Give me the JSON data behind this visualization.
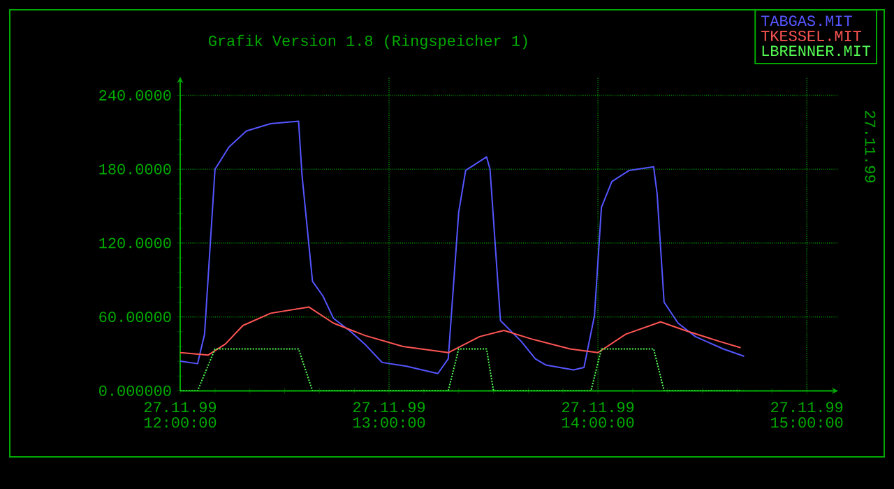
{
  "chart_data": {
    "type": "line",
    "title": "Grafik   Version 1.8 (Ringspeicher 1)",
    "xlim": [
      "1999-11-27T12:00",
      "1999-11-27T15:09"
    ],
    "ylim": [
      0,
      255
    ],
    "xticks": [
      {
        "value": "1999-11-27T12:00",
        "label": "27.11.99 12:00:00"
      },
      {
        "value": "1999-11-27T13:00",
        "label": "27.11.99 13:00:00"
      },
      {
        "value": "1999-11-27T14:00",
        "label": "27.11.99 14:00:00"
      },
      {
        "value": "1999-11-27T15:00",
        "label": "27.11.99 15:00:00"
      }
    ],
    "yticks": [
      {
        "value": 0,
        "label": "0.000000"
      },
      {
        "value": 60,
        "label": "60.00000"
      },
      {
        "value": 120,
        "label": "120.0000"
      },
      {
        "value": 180,
        "label": "180.0000"
      },
      {
        "value": 240,
        "label": "240.0000"
      }
    ],
    "grid": true,
    "legend": "top right",
    "marker": "none",
    "annotations": [
      "27.11.99"
    ],
    "series": [
      {
        "name": "TABGAS.MIT",
        "color": "#5555ff",
        "line_style": "solid",
        "x": [
          "1999-11-27T12:00",
          "1999-11-27T12:05",
          "1999-11-27T12:07",
          "1999-11-27T12:10",
          "1999-11-27T12:14",
          "1999-11-27T12:19",
          "1999-11-27T12:26",
          "1999-11-27T12:34",
          "1999-11-27T12:35",
          "1999-11-27T12:38",
          "1999-11-27T12:41",
          "1999-11-27T12:44",
          "1999-11-27T12:49",
          "1999-11-27T12:53",
          "1999-11-27T12:58",
          "1999-11-27T13:05",
          "1999-11-27T13:14",
          "1999-11-27T13:17",
          "1999-11-27T13:20",
          "1999-11-27T13:22",
          "1999-11-27T13:28",
          "1999-11-27T13:29",
          "1999-11-27T13:32",
          "1999-11-27T13:38",
          "1999-11-27T13:42",
          "1999-11-27T13:45",
          "1999-11-27T13:53",
          "1999-11-27T13:56",
          "1999-11-27T13:59",
          "1999-11-27T14:01",
          "1999-11-27T14:04",
          "1999-11-27T14:09",
          "1999-11-27T14:16",
          "1999-11-27T14:17",
          "1999-11-27T14:19",
          "1999-11-27T14:23",
          "1999-11-27T14:28",
          "1999-11-27T14:36",
          "1999-11-27T14:42"
        ],
        "values": [
          24,
          22,
          46,
          180,
          198,
          211,
          217,
          219,
          175,
          89,
          77,
          59,
          48,
          38,
          23,
          20,
          14,
          26,
          145,
          179,
          190,
          180,
          57,
          40,
          26,
          21,
          17,
          19,
          61,
          149,
          170,
          179,
          182,
          160,
          72,
          55,
          44,
          34,
          28
        ]
      },
      {
        "name": "TKESSEL.MIT",
        "color": "#ff5555",
        "line_style": "solid",
        "x": [
          "1999-11-27T12:00",
          "1999-11-27T12:08",
          "1999-11-27T12:13",
          "1999-11-27T12:18",
          "1999-11-27T12:26",
          "1999-11-27T12:37",
          "1999-11-27T12:44",
          "1999-11-27T12:53",
          "1999-11-27T13:04",
          "1999-11-27T13:17",
          "1999-11-27T13:26",
          "1999-11-27T13:33",
          "1999-11-27T13:41",
          "1999-11-27T13:52",
          "1999-11-27T14:00",
          "1999-11-27T14:08",
          "1999-11-27T14:18",
          "1999-11-27T14:25",
          "1999-11-27T14:35",
          "1999-11-27T14:41"
        ],
        "values": [
          31,
          29,
          38,
          53,
          63,
          68,
          55,
          45,
          36,
          31,
          44,
          49,
          42,
          34,
          31,
          46,
          56,
          49,
          40,
          35
        ]
      },
      {
        "name": "LBRENNER.MIT",
        "color": "#55ff55",
        "line_style": "dotted",
        "x": [
          "1999-11-27T12:00",
          "1999-11-27T12:05",
          "1999-11-27T12:10",
          "1999-11-27T12:34",
          "1999-11-27T12:38",
          "1999-11-27T13:17",
          "1999-11-27T13:20",
          "1999-11-27T13:28",
          "1999-11-27T13:30",
          "1999-11-27T13:58",
          "1999-11-27T14:01",
          "1999-11-27T14:16",
          "1999-11-27T14:19",
          "1999-11-27T14:41"
        ],
        "values": [
          0,
          0,
          34,
          34,
          0,
          0,
          34,
          34,
          0,
          0,
          34,
          34,
          0,
          0
        ]
      }
    ]
  }
}
